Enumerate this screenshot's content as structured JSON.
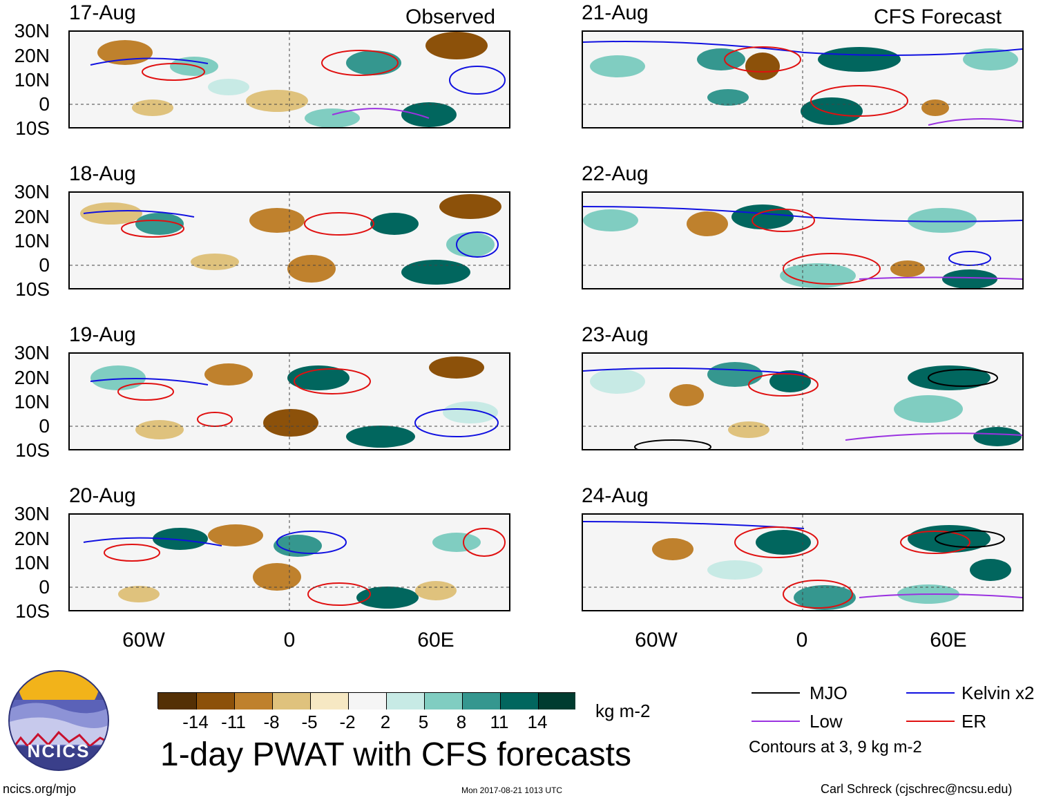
{
  "panels_observed": [
    {
      "date": "17-Aug",
      "tag": "Observed"
    },
    {
      "date": "18-Aug"
    },
    {
      "date": "19-Aug"
    },
    {
      "date": "20-Aug"
    }
  ],
  "panels_forecast": [
    {
      "date": "21-Aug",
      "tag": "CFS Forecast"
    },
    {
      "date": "22-Aug"
    },
    {
      "date": "23-Aug"
    },
    {
      "date": "24-Aug"
    }
  ],
  "lat_labels": [
    "30N",
    "20N",
    "10N",
    "0",
    "10S"
  ],
  "lon_labels": [
    "60W",
    "0",
    "60E"
  ],
  "colorbar": {
    "ticks": [
      "-14",
      "-11",
      "-8",
      "-5",
      "-2",
      "2",
      "5",
      "8",
      "11",
      "14"
    ],
    "units": "kg m-2",
    "colors": [
      "#543005",
      "#8c510a",
      "#bf812d",
      "#dfc27d",
      "#f6e8c3",
      "#f5f5f5",
      "#c7eae5",
      "#80cdc1",
      "#35978f",
      "#01665e",
      "#003c30"
    ]
  },
  "title": "1-day PWAT with CFS forecasts",
  "legend": {
    "items": [
      {
        "label": "MJO",
        "color": "#000000"
      },
      {
        "label": "Kelvin x2",
        "color": "#1010e0"
      },
      {
        "label": "Low",
        "color": "#9a32e0"
      },
      {
        "label": "ER",
        "color": "#e01010"
      }
    ],
    "note": "Contours at 3, 9 kg m-2"
  },
  "logo": {
    "text": "NCICS"
  },
  "footer": {
    "url": "ncics.org/mjo",
    "timestamp": "Mon 2017-08-21 1013 UTC",
    "credit": "Carl Schreck (cjschrec@ncsu.edu)"
  }
}
